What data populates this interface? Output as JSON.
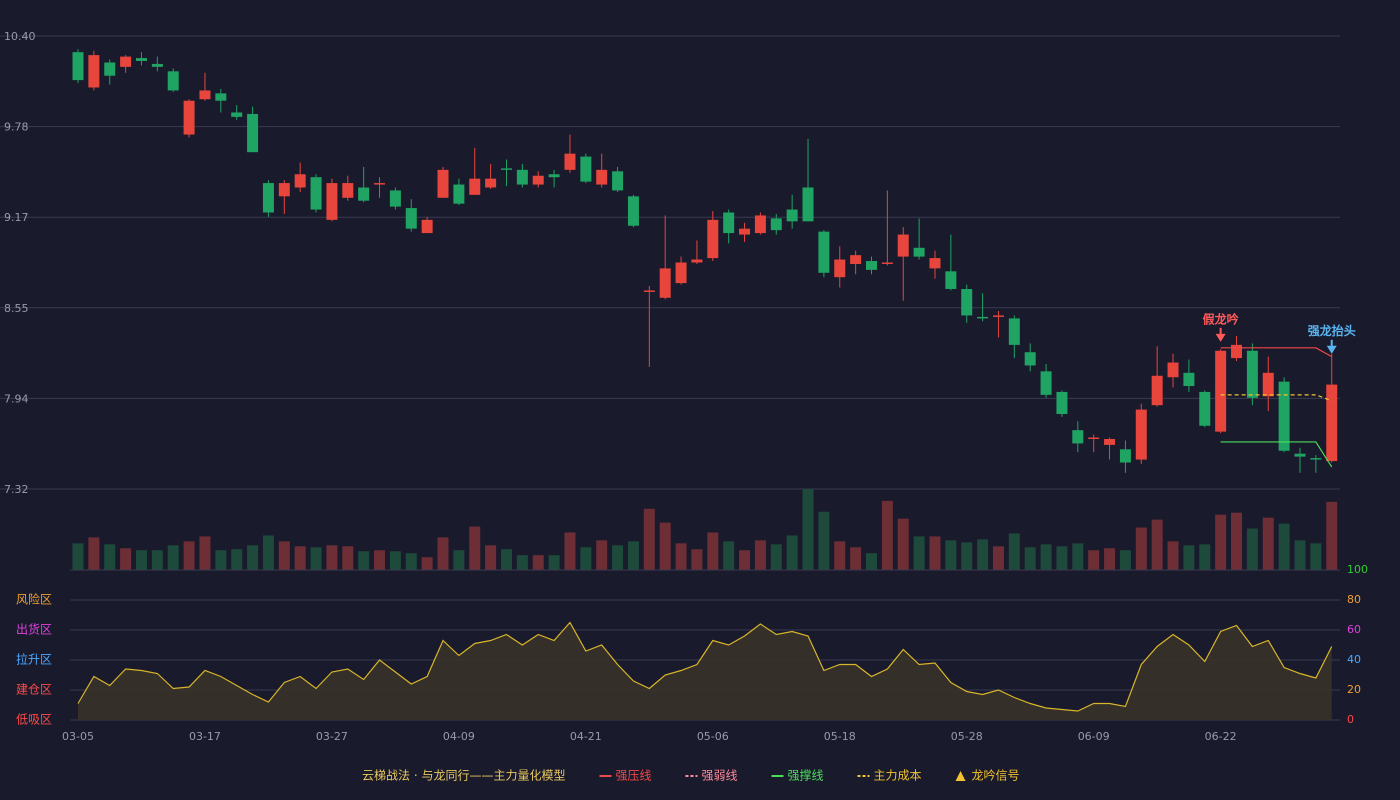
{
  "chart_data": [
    {
      "type": "candlestick",
      "legend_title": "云梯战法 · 与龙同行——主力量化模型",
      "categories": [
        "03-05",
        null,
        null,
        null,
        null,
        null,
        null,
        null,
        "03-17",
        null,
        null,
        null,
        null,
        null,
        null,
        null,
        "03-27",
        null,
        null,
        null,
        null,
        null,
        null,
        null,
        "04-09",
        null,
        null,
        null,
        null,
        null,
        null,
        null,
        "04-21",
        null,
        null,
        null,
        null,
        null,
        null,
        null,
        "05-06",
        null,
        null,
        null,
        null,
        null,
        null,
        null,
        "05-18",
        null,
        null,
        null,
        null,
        null,
        null,
        null,
        "05-28",
        null,
        null,
        null,
        null,
        null,
        null,
        null,
        "06-09",
        null,
        null,
        null,
        null,
        null,
        null,
        null,
        "06-22",
        null,
        null,
        null,
        null,
        null,
        null,
        null
      ],
      "open": [
        10.29,
        10.05,
        10.22,
        10.19,
        10.25,
        10.21,
        10.16,
        9.73,
        9.97,
        10.01,
        9.88,
        9.87,
        9.4,
        9.31,
        9.37,
        9.44,
        9.15,
        9.3,
        9.37,
        9.39,
        9.35,
        9.23,
        9.06,
        9.3,
        9.39,
        9.32,
        9.37,
        9.5,
        9.49,
        9.39,
        9.46,
        9.49,
        9.58,
        9.39,
        9.48,
        9.31,
        8.66,
        8.62,
        8.72,
        8.86,
        8.89,
        9.2,
        9.05,
        9.06,
        9.16,
        9.22,
        9.37,
        9.07,
        8.76,
        8.85,
        8.87,
        8.85,
        8.9,
        8.96,
        8.82,
        8.8,
        8.68,
        8.49,
        8.49,
        8.48,
        8.25,
        8.12,
        7.98,
        7.72,
        7.66,
        7.62,
        7.59,
        7.52,
        7.89,
        8.08,
        8.11,
        7.98,
        7.71,
        8.21,
        8.26,
        7.95,
        8.05,
        7.56,
        7.53,
        7.51
      ],
      "close": [
        10.1,
        10.27,
        10.13,
        10.26,
        10.23,
        10.19,
        10.03,
        9.96,
        10.03,
        9.96,
        9.85,
        9.61,
        9.2,
        9.4,
        9.46,
        9.22,
        9.4,
        9.4,
        9.28,
        9.4,
        9.24,
        9.09,
        9.15,
        9.49,
        9.26,
        9.43,
        9.43,
        9.49,
        9.39,
        9.45,
        9.44,
        9.6,
        9.41,
        9.49,
        9.35,
        9.11,
        8.67,
        8.82,
        8.86,
        8.88,
        9.15,
        9.06,
        9.09,
        9.18,
        9.08,
        9.14,
        9.14,
        8.79,
        8.88,
        8.91,
        8.81,
        8.86,
        9.05,
        8.9,
        8.89,
        8.68,
        8.5,
        8.48,
        8.5,
        8.3,
        8.16,
        7.96,
        7.83,
        7.63,
        7.67,
        7.66,
        7.5,
        7.86,
        8.09,
        8.18,
        8.02,
        7.75,
        8.26,
        8.3,
        7.94,
        8.11,
        7.58,
        7.54,
        7.52,
        8.03
      ],
      "high": [
        10.31,
        10.3,
        10.24,
        10.27,
        10.29,
        10.26,
        10.18,
        9.97,
        10.15,
        10.04,
        9.93,
        9.92,
        9.42,
        9.42,
        9.54,
        9.46,
        9.43,
        9.45,
        9.51,
        9.44,
        9.37,
        9.29,
        9.17,
        9.51,
        9.43,
        9.64,
        9.53,
        9.56,
        9.53,
        9.48,
        9.49,
        9.73,
        9.6,
        9.6,
        9.51,
        9.32,
        8.7,
        9.18,
        8.9,
        9.01,
        9.21,
        9.22,
        9.13,
        9.2,
        9.19,
        9.32,
        9.7,
        9.08,
        8.97,
        8.94,
        8.9,
        9.35,
        9.1,
        9.16,
        8.94,
        9.05,
        8.71,
        8.65,
        8.53,
        8.5,
        8.31,
        8.17,
        7.99,
        7.78,
        7.69,
        7.67,
        7.65,
        7.9,
        8.29,
        8.24,
        8.2,
        7.99,
        8.27,
        8.36,
        8.31,
        8.22,
        8.08,
        7.6,
        7.55,
        8.24
      ],
      "low": [
        10.08,
        10.03,
        10.07,
        10.15,
        10.2,
        10.16,
        10.02,
        9.71,
        9.96,
        9.88,
        9.83,
        9.61,
        9.17,
        9.19,
        9.34,
        9.2,
        9.14,
        9.28,
        9.27,
        9.3,
        9.22,
        9.07,
        9.06,
        9.3,
        9.25,
        9.32,
        9.36,
        9.38,
        9.37,
        9.37,
        9.37,
        9.47,
        9.4,
        9.37,
        9.34,
        9.1,
        8.15,
        8.61,
        8.71,
        8.85,
        8.87,
        8.99,
        9.0,
        9.05,
        9.05,
        9.09,
        9.14,
        8.76,
        8.69,
        8.78,
        8.78,
        8.84,
        8.6,
        8.88,
        8.75,
        8.67,
        8.45,
        8.46,
        8.35,
        8.21,
        8.12,
        7.94,
        7.81,
        7.57,
        7.57,
        7.52,
        7.43,
        7.49,
        7.88,
        8.01,
        7.98,
        7.74,
        7.7,
        8.19,
        7.89,
        7.85,
        7.57,
        7.43,
        7.43,
        7.5
      ],
      "up_color": "#e8453c",
      "down_color": "#1fa463",
      "ylim": [
        7.32,
        10.4
      ],
      "yticks": [
        {
          "value": 7.32,
          "label": "7.32"
        },
        {
          "value": 7.936,
          "label": "7.94"
        },
        {
          "value": 8.552,
          "label": "8.55"
        },
        {
          "value": 9.168,
          "label": "9.17"
        },
        {
          "value": 9.784,
          "label": "9.78"
        },
        {
          "value": 10.4,
          "label": "10.40"
        }
      ],
      "grid": true,
      "series": [
        {
          "name": "强压线",
          "color": "#f04848",
          "style": "solid",
          "values": [
            null,
            null,
            null,
            null,
            null,
            null,
            null,
            null,
            null,
            null,
            null,
            null,
            null,
            null,
            null,
            null,
            null,
            null,
            null,
            null,
            null,
            null,
            null,
            null,
            null,
            null,
            null,
            null,
            null,
            null,
            null,
            null,
            null,
            null,
            null,
            null,
            null,
            null,
            null,
            null,
            null,
            null,
            null,
            null,
            null,
            null,
            null,
            null,
            null,
            null,
            null,
            null,
            null,
            null,
            null,
            null,
            null,
            null,
            null,
            null,
            null,
            null,
            null,
            null,
            null,
            null,
            null,
            null,
            null,
            null,
            null,
            null,
            8.28,
            8.28,
            8.28,
            8.28,
            8.28,
            8.28,
            8.28,
            8.22
          ]
        },
        {
          "name": "强弱线",
          "color": "#ff8a9a",
          "style": "dashed",
          "values": [
            null,
            null,
            null,
            null,
            null,
            null,
            null,
            null,
            null,
            null,
            null,
            null,
            null,
            null,
            null,
            null,
            null,
            null,
            null,
            null,
            null,
            null,
            null,
            null,
            null,
            null,
            null,
            null,
            null,
            null,
            null,
            null,
            null,
            null,
            null,
            null,
            null,
            null,
            null,
            null,
            null,
            null,
            null,
            null,
            null,
            null,
            null,
            null,
            null,
            null,
            null,
            null,
            null,
            null,
            null,
            null,
            null,
            null,
            null,
            null,
            null,
            null,
            null,
            null,
            null,
            null,
            null,
            null,
            null,
            null,
            null,
            null,
            null,
            null,
            null,
            null,
            null,
            null,
            null,
            null
          ]
        },
        {
          "name": "强撑线",
          "color": "#4cdc5c",
          "style": "solid",
          "values": [
            null,
            null,
            null,
            null,
            null,
            null,
            null,
            null,
            null,
            null,
            null,
            null,
            null,
            null,
            null,
            null,
            null,
            null,
            null,
            null,
            null,
            null,
            null,
            null,
            null,
            null,
            null,
            null,
            null,
            null,
            null,
            null,
            null,
            null,
            null,
            null,
            null,
            null,
            null,
            null,
            null,
            null,
            null,
            null,
            null,
            null,
            null,
            null,
            null,
            null,
            null,
            null,
            null,
            null,
            null,
            null,
            null,
            null,
            null,
            null,
            null,
            null,
            null,
            null,
            null,
            null,
            null,
            null,
            null,
            null,
            null,
            null,
            7.64,
            7.64,
            7.64,
            7.64,
            7.64,
            7.64,
            7.64,
            7.47
          ]
        },
        {
          "name": "主力成本",
          "color": "#f2c230",
          "style": "dashed",
          "values": [
            null,
            null,
            null,
            null,
            null,
            null,
            null,
            null,
            null,
            null,
            null,
            null,
            null,
            null,
            null,
            null,
            null,
            null,
            null,
            null,
            null,
            null,
            null,
            null,
            null,
            null,
            null,
            null,
            null,
            null,
            null,
            null,
            null,
            null,
            null,
            null,
            null,
            null,
            null,
            null,
            null,
            null,
            null,
            null,
            null,
            null,
            null,
            null,
            null,
            null,
            null,
            null,
            null,
            null,
            null,
            null,
            null,
            null,
            null,
            null,
            null,
            null,
            null,
            null,
            null,
            null,
            null,
            null,
            null,
            null,
            null,
            null,
            7.96,
            7.96,
            7.96,
            7.96,
            7.96,
            7.96,
            7.96,
            7.92
          ]
        },
        {
          "name": "龙吟信号",
          "color": "#f2c230",
          "style": "triangle",
          "values": [
            null,
            null,
            null,
            null,
            null,
            null,
            null,
            null,
            null,
            null,
            null,
            null,
            null,
            null,
            null,
            null,
            null,
            null,
            null,
            null,
            null,
            null,
            null,
            null,
            null,
            null,
            null,
            null,
            null,
            null,
            null,
            null,
            null,
            null,
            null,
            null,
            null,
            null,
            null,
            null,
            null,
            null,
            null,
            null,
            null,
            null,
            null,
            null,
            null,
            null,
            null,
            null,
            null,
            null,
            null,
            null,
            null,
            null,
            null,
            null,
            null,
            null,
            null,
            null,
            null,
            null,
            null,
            null,
            null,
            null,
            null,
            null,
            null,
            null,
            null,
            null,
            null,
            null,
            null,
            null
          ]
        }
      ],
      "annotations": [
        {
          "text": "假龙吟",
          "index": 72,
          "value": 8.32,
          "color": "#ff5a5a"
        },
        {
          "text": "强龙抬头",
          "index": 79,
          "value": 8.24,
          "color": "#5ab4f0"
        }
      ]
    },
    {
      "type": "bar",
      "values": [
        27,
        33,
        26,
        22,
        20,
        20,
        25,
        29,
        34,
        20,
        21,
        25,
        35,
        29,
        24,
        23,
        25,
        24,
        19,
        20,
        19,
        17,
        13,
        33,
        20,
        44,
        25,
        21,
        15,
        15,
        15,
        38,
        23,
        30,
        25,
        29,
        62,
        48,
        27,
        21,
        38,
        29,
        20,
        30,
        26,
        35,
        82,
        59,
        29,
        23,
        17,
        70,
        52,
        34,
        34,
        30,
        28,
        31,
        24,
        37,
        23,
        26,
        24,
        27,
        20,
        22,
        20,
        43,
        51,
        29,
        25,
        26,
        56,
        58,
        42,
        53,
        47,
        30,
        27,
        69
      ],
      "up_color": "#6e2e36",
      "down_color": "#1d4a3b"
    },
    {
      "type": "line",
      "values": [
        11,
        29,
        23,
        34,
        33,
        31,
        21,
        22,
        33,
        29,
        23,
        17,
        12,
        25,
        29,
        21,
        32,
        34,
        27,
        40,
        32,
        24,
        29,
        53,
        43,
        51,
        53,
        57,
        50,
        57,
        53,
        65,
        46,
        50,
        37,
        26,
        21,
        30,
        33,
        37,
        53,
        50,
        56,
        64,
        57,
        59,
        56,
        33,
        37,
        37,
        29,
        34,
        47,
        37,
        38,
        25,
        19,
        17,
        20,
        15,
        11,
        8,
        7,
        6,
        11,
        11,
        9,
        37,
        49,
        57,
        50,
        39,
        59,
        63,
        49,
        53,
        35,
        31,
        28,
        49
      ],
      "color": "#d8b52a",
      "fill": "#3a3428",
      "ylim": [
        0,
        100
      ],
      "yticks": [
        0,
        20,
        40,
        60,
        80,
        100
      ],
      "ytick_colors": [
        "#ff4a4a",
        "#f0a030",
        "#4aa8ff",
        "#e040e0",
        "#f0a030",
        "#33cc33"
      ],
      "zones": [
        {
          "label": "低吸区",
          "value": 0,
          "color": "#ff4a4a"
        },
        {
          "label": "建仓区",
          "value": 20,
          "color": "#ff4a4a"
        },
        {
          "label": "拉升区",
          "value": 40,
          "color": "#4aa8ff"
        },
        {
          "label": "出货区",
          "value": 60,
          "color": "#e040e0"
        },
        {
          "label": "风险区",
          "value": 80,
          "color": "#f0a030"
        }
      ],
      "grid": true
    }
  ]
}
